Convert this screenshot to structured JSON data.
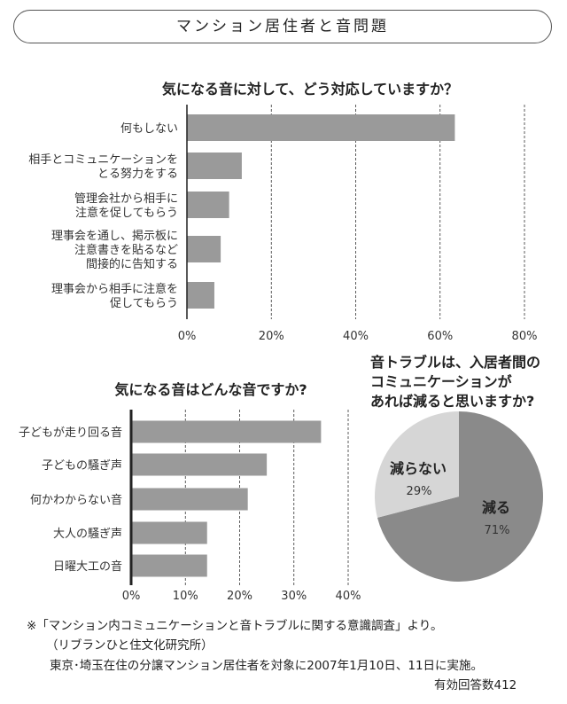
{
  "header": {
    "title": "マンション居住者と音問題"
  },
  "chart_data": [
    {
      "type": "bar",
      "orientation": "horizontal",
      "title": "気になる音に対して、どう対応していますか？",
      "categories": [
        [
          "何もしない"
        ],
        [
          "相手とコミュニケーションを",
          "とる努力をする"
        ],
        [
          "管理会社から相手に",
          "注意を促してもらう"
        ],
        [
          "理事会を通し、掲示板に",
          "注意書きを貼るなど",
          "間接的に告知する"
        ],
        [
          "理事会から相手に注意を",
          "促してもらう"
        ]
      ],
      "values": [
        63.5,
        13,
        10,
        8,
        6.5
      ],
      "xlim": [
        0,
        80
      ],
      "xticks": [
        "0%",
        "20%",
        "40%",
        "60%",
        "80%"
      ],
      "tick_values": [
        0,
        20,
        40,
        60,
        80
      ],
      "grid": true
    },
    {
      "type": "bar",
      "orientation": "horizontal",
      "title": "気になる音はどんな音ですか?",
      "categories": [
        [
          "子どもが走り回る音"
        ],
        [
          "子どもの騒ぎ声"
        ],
        [
          "何かわからない音"
        ],
        [
          "大人の騒ぎ声"
        ],
        [
          "日曜大工の音"
        ]
      ],
      "values": [
        35,
        25,
        21.5,
        14,
        14
      ],
      "xlim": [
        0,
        40
      ],
      "xticks": [
        "0%",
        "10%",
        "20%",
        "30%",
        "40%"
      ],
      "tick_values": [
        0,
        10,
        20,
        30,
        40
      ],
      "grid": true
    },
    {
      "type": "pie",
      "title": [
        "音トラブルは、入居者間の",
        "コミュニケーションが",
        "あれば減ると思いますか?"
      ],
      "slices": [
        {
          "label": "減る",
          "value": 71,
          "value_label": "71%",
          "color": "#8a8a8a"
        },
        {
          "label": "減らない",
          "value": 29,
          "value_label": "29%",
          "color": "#d6d6d6"
        }
      ]
    }
  ],
  "colors": {
    "bar": "#9a9a9a"
  },
  "footer": {
    "line1": "※「マンション内コミュニケーションと音トラブルに関する意識調査」より。",
    "line2": "（リブランひと住文化研究所）",
    "line3": "東京･埼玉在住の分譲マンション居住者を対象に2007年1月10日、11日に実施。",
    "line4": "有効回答数412"
  }
}
